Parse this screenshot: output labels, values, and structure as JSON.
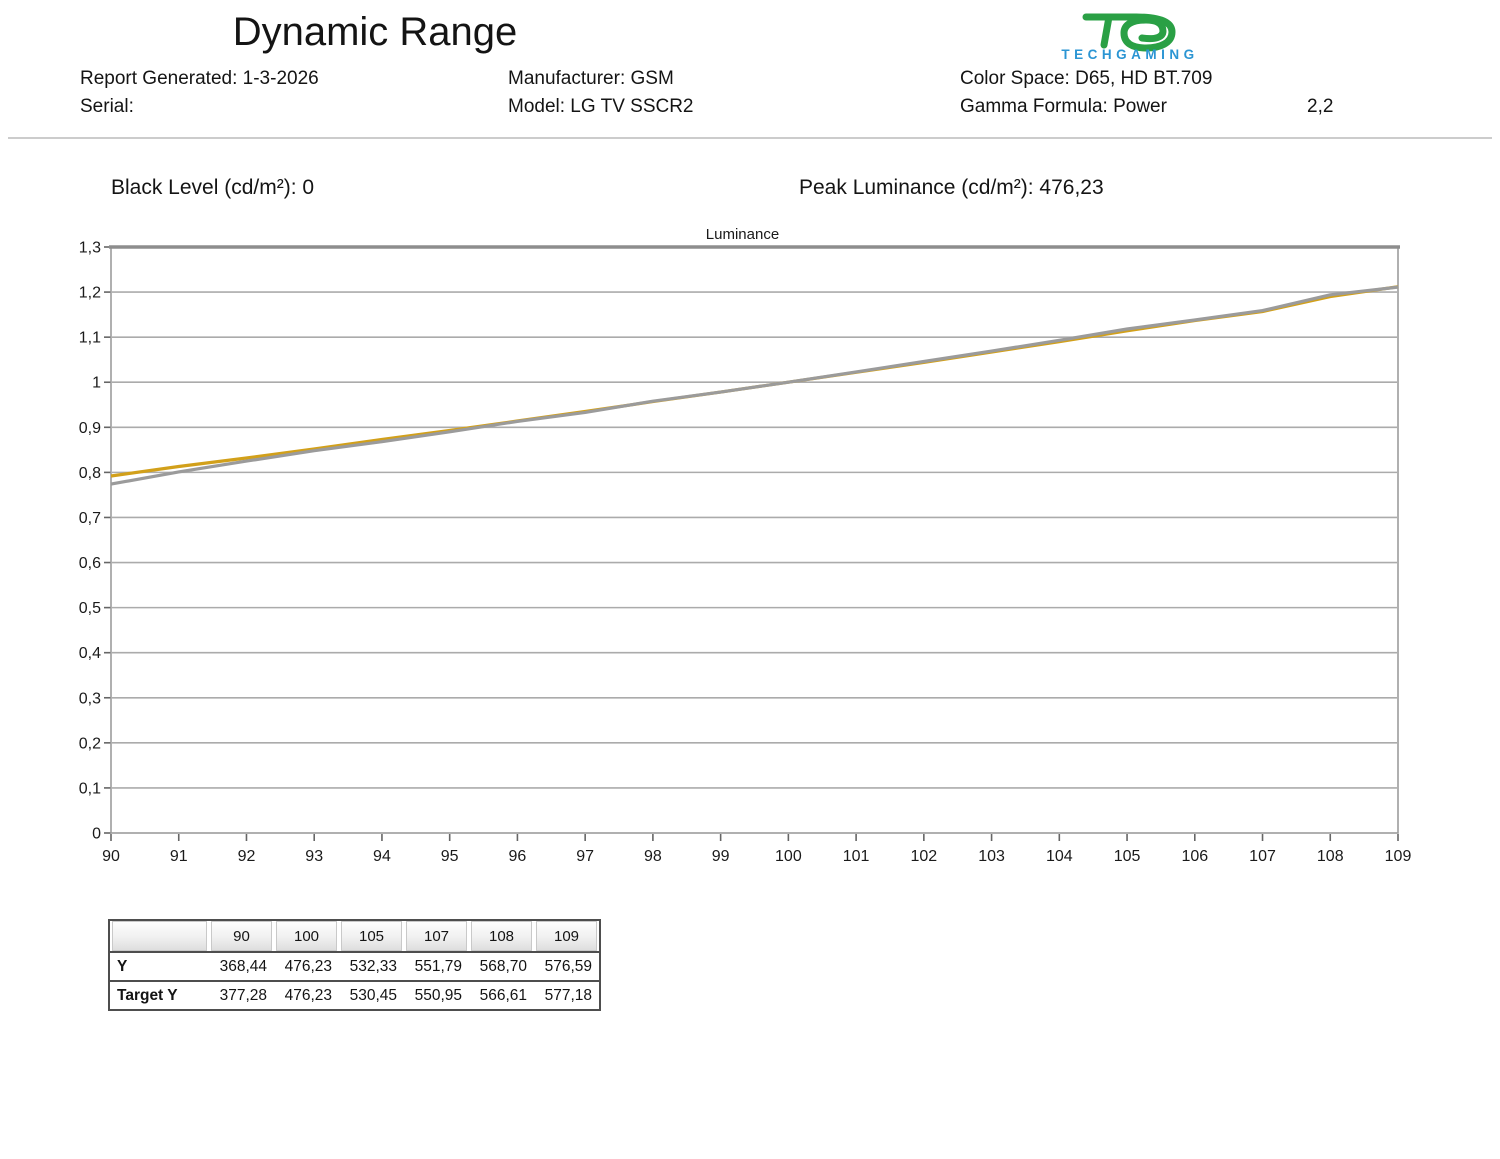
{
  "header": {
    "title": "Dynamic Range",
    "report_generated": "Report Generated: 1-3-2026",
    "serial": "Serial:",
    "manufacturer": "Manufacturer: GSM",
    "model": "Model: LG TV SSCR2",
    "color_space": "Color Space: D65, HD BT.709",
    "gamma_formula": "Gamma Formula: Power",
    "gamma_value": "2,2"
  },
  "logo": {
    "brand": "TECHGAMING",
    "glyph_color": "#2aa045",
    "text_color": "#2b95d3"
  },
  "metrics": {
    "black_level": "Black Level (cd/m²): 0",
    "peak_luminance": "Peak Luminance (cd/m²): 476,23"
  },
  "chart_data": {
    "type": "line",
    "title": "Luminance",
    "xlabel": "",
    "ylabel": "",
    "grid": "horizontal",
    "legend": "none",
    "ylim": [
      0,
      1.3
    ],
    "y_tick_labels": [
      "0",
      "0,1",
      "0,2",
      "0,3",
      "0,4",
      "0,5",
      "0,6",
      "0,7",
      "0,8",
      "0,9",
      "1",
      "1,1",
      "1,2",
      "1,3"
    ],
    "x": [
      90,
      91,
      92,
      93,
      94,
      95,
      96,
      97,
      98,
      99,
      100,
      101,
      102,
      103,
      104,
      105,
      106,
      107,
      108,
      109
    ],
    "x_tick_labels": [
      "90",
      "91",
      "92",
      "93",
      "94",
      "95",
      "96",
      "97",
      "98",
      "99",
      "100",
      "101",
      "102",
      "103",
      "104",
      "105",
      "106",
      "107",
      "108",
      "109"
    ],
    "series": [
      {
        "name": "Target Y",
        "color": "#d2a01a",
        "values": [
          0.792,
          0.813,
          0.832,
          0.852,
          0.873,
          0.893,
          0.914,
          0.935,
          0.957,
          0.978,
          1.0,
          1.022,
          1.044,
          1.067,
          1.09,
          1.114,
          1.137,
          1.157,
          1.19,
          1.212
        ]
      },
      {
        "name": "Y",
        "color": "#9b9b9b",
        "values": [
          0.774,
          0.801,
          0.825,
          0.848,
          0.868,
          0.89,
          0.913,
          0.933,
          0.958,
          0.978,
          1.0,
          1.023,
          1.046,
          1.069,
          1.093,
          1.118,
          1.138,
          1.159,
          1.194,
          1.211
        ]
      }
    ],
    "colors": {
      "grid": "#ababab",
      "border": "#9c9c9c",
      "tick": "#666666",
      "text": "#1a1a1a"
    }
  },
  "table": {
    "columns": [
      "",
      "90",
      "100",
      "105",
      "107",
      "108",
      "109"
    ],
    "rows": [
      {
        "label": "Y",
        "values": [
          "368,44",
          "476,23",
          "532,33",
          "551,79",
          "568,70",
          "576,59"
        ]
      },
      {
        "label": "Target Y",
        "values": [
          "377,28",
          "476,23",
          "530,45",
          "550,95",
          "566,61",
          "577,18"
        ]
      }
    ]
  }
}
